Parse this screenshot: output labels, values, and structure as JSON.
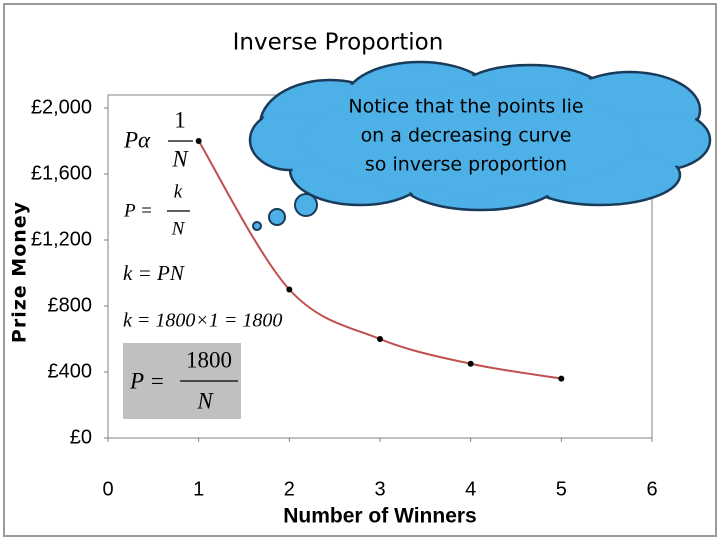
{
  "chart_data": {
    "type": "line",
    "title": "Inverse Proportion",
    "x_label": "Number of Winners",
    "y_label": "Prize Money",
    "x": [
      1,
      2,
      3,
      4,
      5
    ],
    "series": [
      {
        "name": "Prize Money",
        "color": "#c0504d",
        "values": [
          1800,
          900,
          600,
          450,
          360
        ]
      }
    ],
    "xlim": [
      0,
      6
    ],
    "xticks": [
      0,
      1,
      2,
      3,
      4,
      5,
      6
    ],
    "ylim": [
      0,
      2000
    ],
    "yticks": [
      {
        "value": 0,
        "label": "£0"
      },
      {
        "value": 400,
        "label": "£400"
      },
      {
        "value": 800,
        "label": "£800"
      },
      {
        "value": 1200,
        "label": "£1,200"
      },
      {
        "value": 1600,
        "label": "£1,600"
      },
      {
        "value": 2000,
        "label": "£2,000"
      }
    ],
    "grid": false,
    "callout": [
      "Notice that the points lie",
      "on a decreasing curve",
      "so inverse proportion"
    ],
    "formulas": {
      "proportional": {
        "lhs": "Pα",
        "num": "1",
        "den": "N"
      },
      "general": {
        "lhs": "P =",
        "num": "k",
        "den": "N"
      },
      "constant": "k = PN",
      "substitution": "k = 1800×1 = 1800",
      "result": {
        "lhs": "P =",
        "num": "1800",
        "den": "N"
      }
    }
  }
}
